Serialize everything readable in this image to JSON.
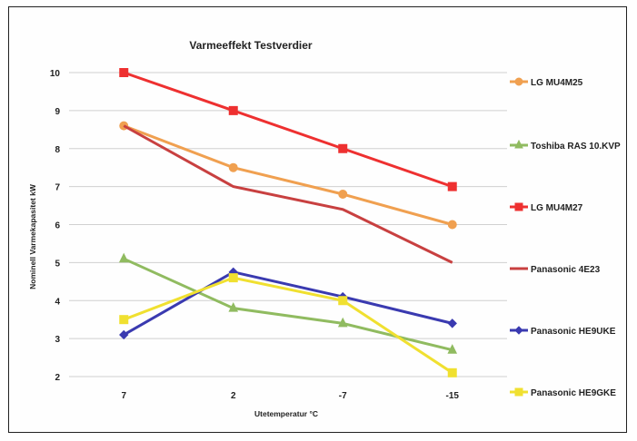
{
  "chart_data": {
    "type": "line",
    "title": "Varmeeffekt Testverdier",
    "xlabel": "Utetemperatur °C",
    "ylabel": "Nominell Varmekapasitet kW",
    "categories": [
      "7",
      "2",
      "-7",
      "-15"
    ],
    "ylim": [
      2,
      10
    ],
    "yticks": [
      2,
      3,
      4,
      5,
      6,
      7,
      8,
      9,
      10
    ],
    "grid": true,
    "legend_position": "right",
    "series": [
      {
        "name": "LG MU4M25",
        "values": [
          8.6,
          7.5,
          6.8,
          6.0
        ],
        "color": "#f0a050",
        "marker": "circle"
      },
      {
        "name": "Toshiba RAS 10.KVP",
        "values": [
          5.1,
          3.8,
          3.4,
          2.7
        ],
        "color": "#90bb60",
        "marker": "triangle"
      },
      {
        "name": "LG MU4M27",
        "values": [
          10.0,
          9.0,
          8.0,
          7.0
        ],
        "color": "#ee3030",
        "marker": "square"
      },
      {
        "name": "Panasonic 4E23",
        "values": [
          8.6,
          7.0,
          6.4,
          5.0
        ],
        "color": "#c84040",
        "marker": "none"
      },
      {
        "name": "Panasonic HE9UKE",
        "values": [
          3.1,
          4.75,
          4.1,
          3.4
        ],
        "color": "#3a3ab0",
        "marker": "diamond"
      },
      {
        "name": "Panasonic HE9GKE",
        "values": [
          3.5,
          4.6,
          4.0,
          2.1
        ],
        "color": "#f0e030",
        "marker": "square"
      }
    ]
  }
}
